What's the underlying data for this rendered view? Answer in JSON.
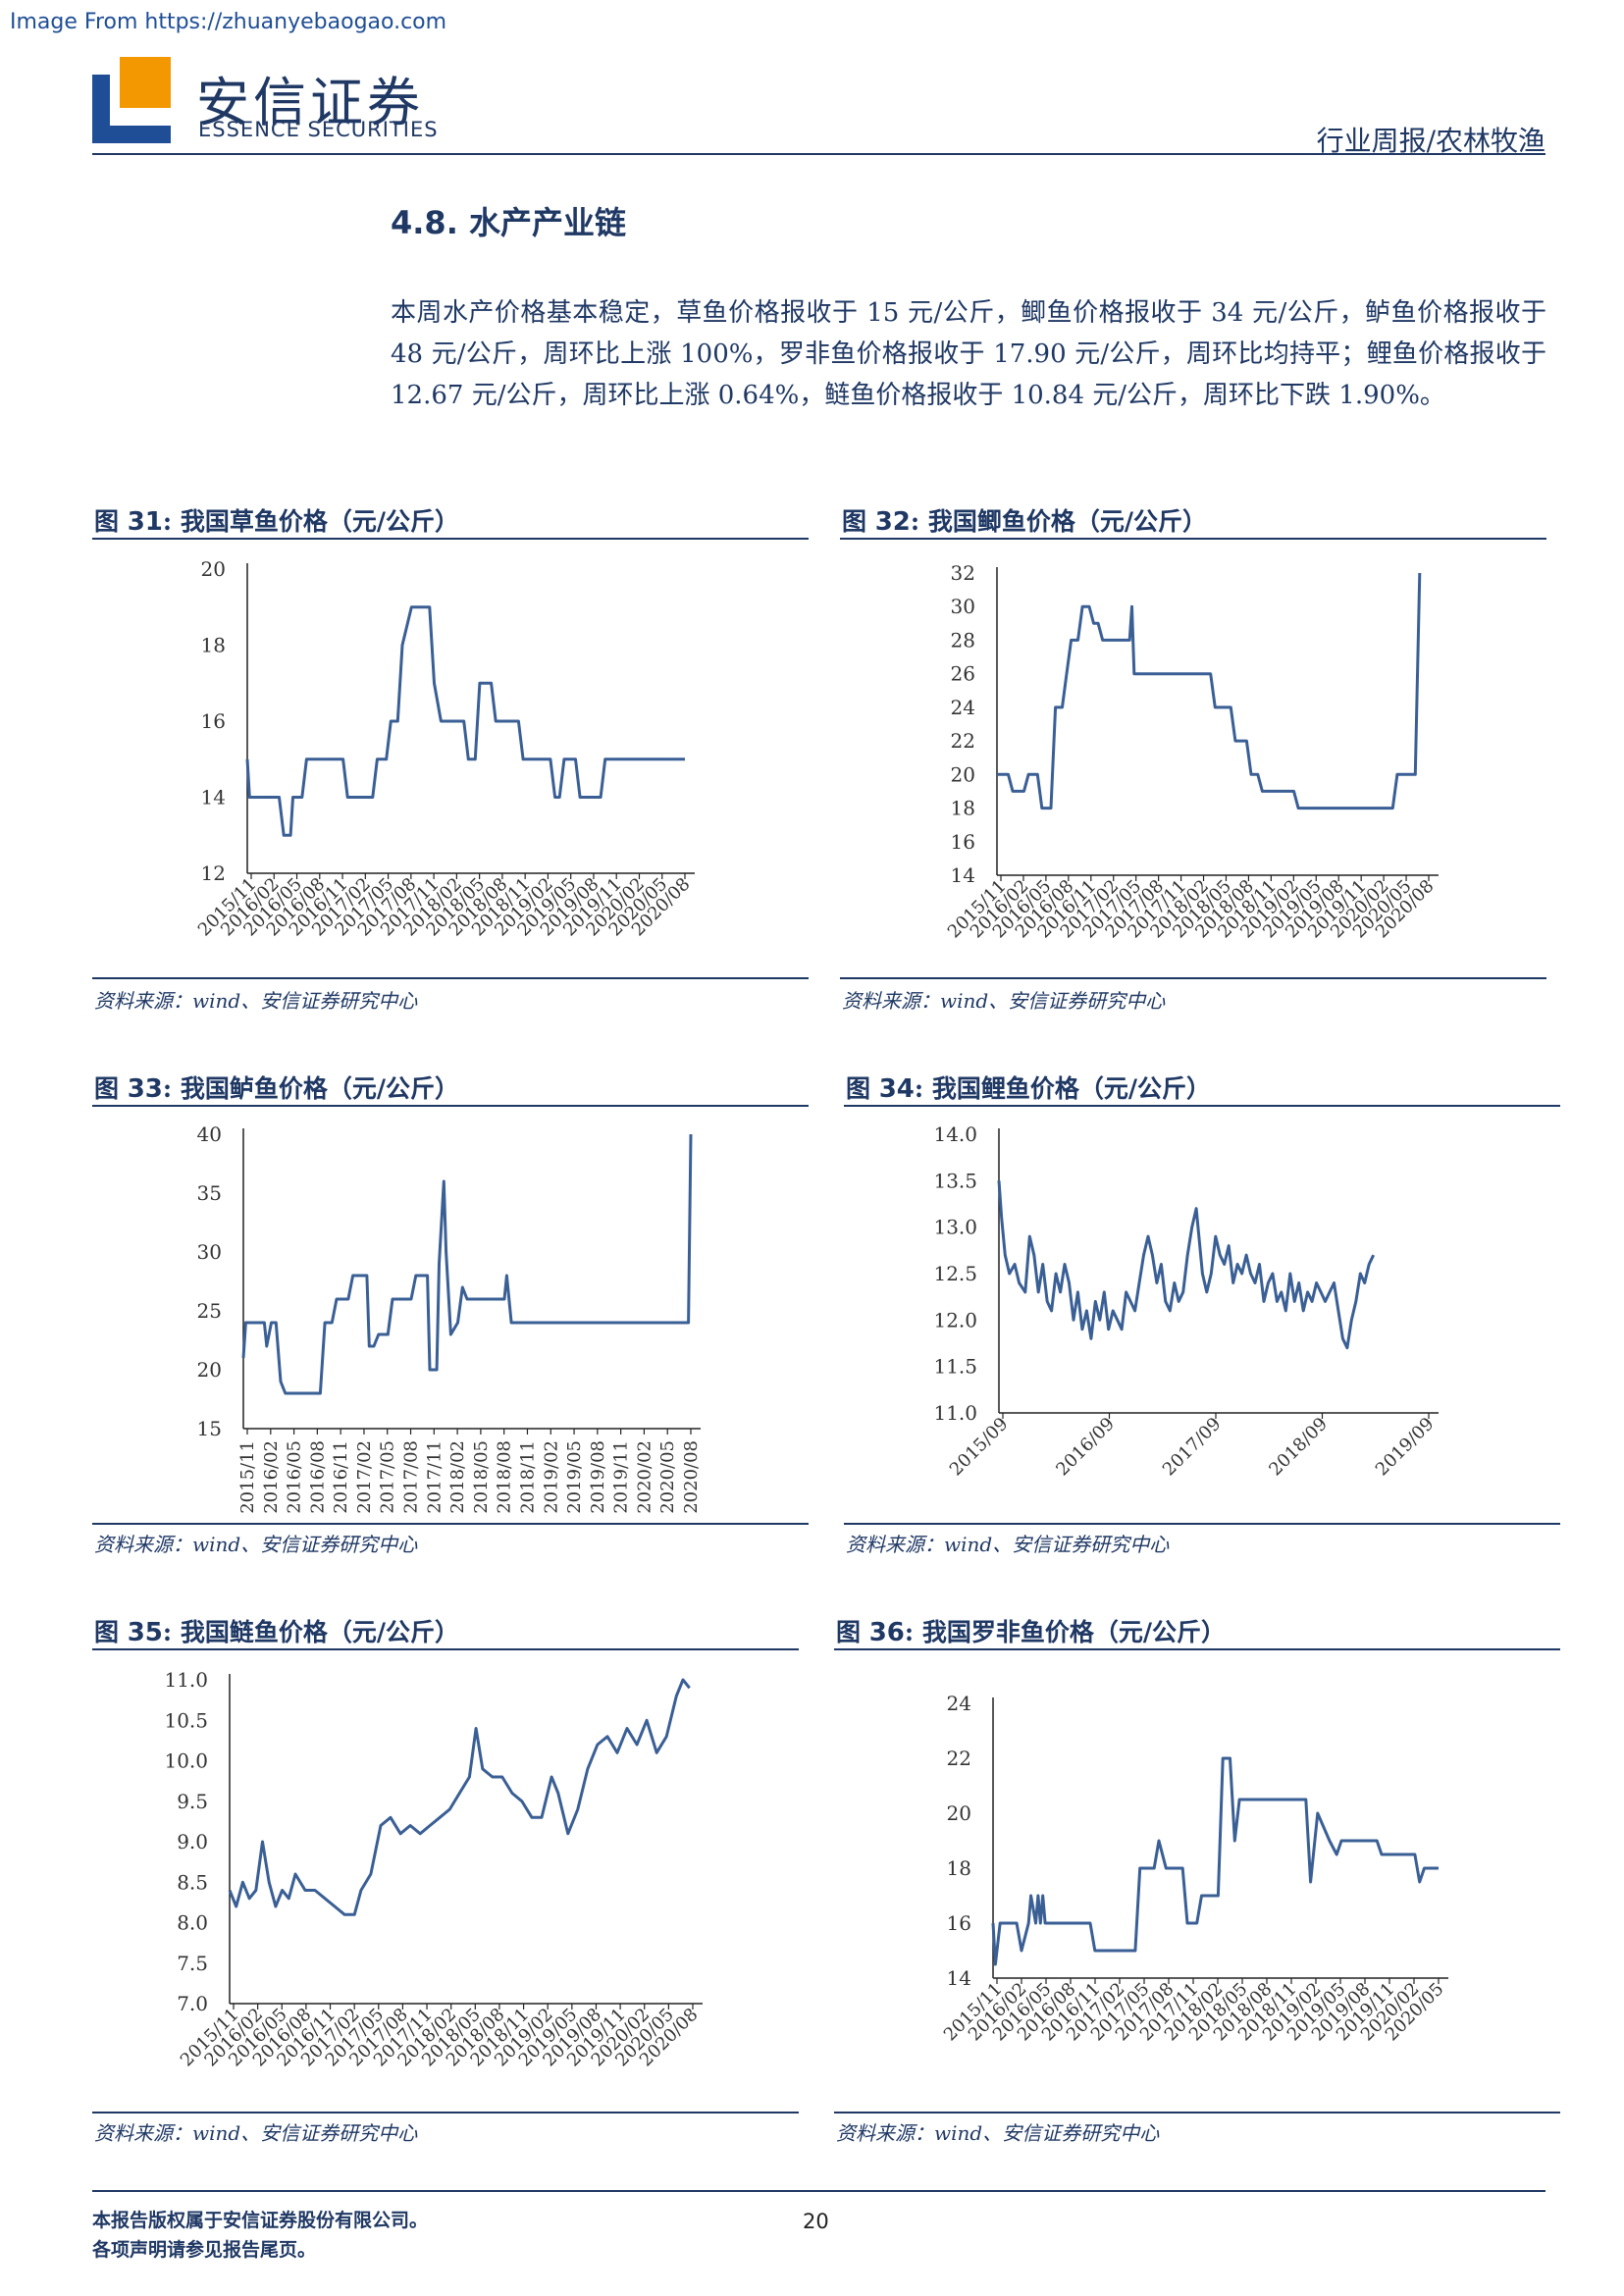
{
  "watermark": "Image From https://zhuanyebaogao.com",
  "header": {
    "brand_cn": "安信证券",
    "brand_en": "ESSENCE SECURITIES",
    "category": "行业周报/农林牧渔",
    "logo_colors": {
      "blue": "#1f4e96",
      "orange": "#f39800"
    }
  },
  "section": {
    "number": "4.8.",
    "title": "水产产业链"
  },
  "body_text": "本周水产价格基本稳定，草鱼价格报收于 15 元/公斤，鲫鱼价格报收于 34 元/公斤，鲈鱼价格报收于 48 元/公斤，周环比上涨 100%，罗非鱼价格报收于 17.90 元/公斤，周环比均持平；鲤鱼价格报收于 12.67 元/公斤，周环比上涨 0.64%，鲢鱼价格报收于 10.84 元/公斤，周环比下跌 1.90%。",
  "figures": [
    {
      "label": "图",
      "num": "31",
      "title": ": 我国草鱼价格（元/公斤）",
      "source": "资料来源：wind、安信证券研究中心"
    },
    {
      "label": "图",
      "num": "32",
      "title": ": 我国鲫鱼价格（元/公斤）",
      "source": "资料来源：wind、安信证券研究中心"
    },
    {
      "label": "图",
      "num": "33",
      "title": ": 我国鲈鱼价格（元/公斤）",
      "source": "资料来源：wind、安信证券研究中心"
    },
    {
      "label": "图",
      "num": "34",
      "title": ": 我国鲤鱼价格（元/公斤）",
      "source": "资料来源：wind、安信证券研究中心"
    },
    {
      "label": "图",
      "num": "35",
      "title": ": 我国鲢鱼价格（元/公斤）",
      "source": "资料来源：wind、安信证券研究中心"
    },
    {
      "label": "图",
      "num": "36",
      "title": ": 我国罗非鱼价格（元/公斤）",
      "source": "资料来源：wind、安信证券研究中心"
    }
  ],
  "chart_data": [
    {
      "type": "line",
      "ylim": [
        12,
        20
      ],
      "yticks": [
        "12",
        "14",
        "16",
        "18",
        "20"
      ],
      "xticks": [
        "2015/11",
        "2016/02",
        "2016/05",
        "2016/08",
        "2016/11",
        "2017/02",
        "2017/05",
        "2017/08",
        "2017/11",
        "2018/02",
        "2018/05",
        "2018/08",
        "2018/11",
        "2019/02",
        "2019/05",
        "2019/08",
        "2019/11",
        "2020/02",
        "2020/05",
        "2020/08"
      ],
      "line_color": "#3a5f95",
      "points": [
        [
          0,
          15
        ],
        [
          0.1,
          14
        ],
        [
          1.4,
          14
        ],
        [
          1.6,
          13
        ],
        [
          1.9,
          13
        ],
        [
          2.0,
          14
        ],
        [
          2.4,
          14
        ],
        [
          2.6,
          15
        ],
        [
          4.2,
          15
        ],
        [
          4.4,
          14
        ],
        [
          5.5,
          14
        ],
        [
          5.7,
          15
        ],
        [
          6.1,
          15
        ],
        [
          6.3,
          16
        ],
        [
          6.6,
          16
        ],
        [
          6.8,
          18
        ],
        [
          7.2,
          19
        ],
        [
          8.0,
          19
        ],
        [
          8.2,
          17
        ],
        [
          8.5,
          16
        ],
        [
          9.5,
          16
        ],
        [
          9.7,
          15
        ],
        [
          10.0,
          15
        ],
        [
          10.2,
          17
        ],
        [
          10.7,
          17
        ],
        [
          10.9,
          16
        ],
        [
          11.9,
          16
        ],
        [
          12.1,
          15
        ],
        [
          13.3,
          15
        ],
        [
          13.5,
          14
        ],
        [
          13.7,
          14
        ],
        [
          13.9,
          15
        ],
        [
          14.4,
          15
        ],
        [
          14.6,
          14
        ],
        [
          15.5,
          14
        ],
        [
          15.7,
          15
        ],
        [
          19.2,
          15
        ]
      ]
    },
    {
      "type": "line",
      "ylim": [
        14,
        32
      ],
      "yticks": [
        "14",
        "16",
        "18",
        "20",
        "22",
        "24",
        "26",
        "28",
        "30",
        "32"
      ],
      "xticks": [
        "2015/11",
        "2016/02",
        "2016/05",
        "2016/08",
        "2016/11",
        "2017/02",
        "2017/05",
        "2017/08",
        "2017/11",
        "2018/02",
        "2018/05",
        "2018/08",
        "2018/11",
        "2019/02",
        "2019/05",
        "2019/08",
        "2019/11",
        "2020/02",
        "2020/05",
        "2020/08"
      ],
      "line_color": "#3a5f95",
      "points": [
        [
          0,
          20
        ],
        [
          0.5,
          20
        ],
        [
          0.7,
          19
        ],
        [
          1.2,
          19
        ],
        [
          1.4,
          20
        ],
        [
          1.8,
          20
        ],
        [
          2.0,
          18
        ],
        [
          2.4,
          18
        ],
        [
          2.6,
          24
        ],
        [
          2.9,
          24
        ],
        [
          3.1,
          26
        ],
        [
          3.3,
          28
        ],
        [
          3.6,
          28
        ],
        [
          3.8,
          30
        ],
        [
          4.1,
          30
        ],
        [
          4.3,
          29
        ],
        [
          4.5,
          29
        ],
        [
          4.7,
          28
        ],
        [
          5.0,
          28
        ],
        [
          5.3,
          28
        ],
        [
          5.6,
          28
        ],
        [
          5.8,
          28
        ],
        [
          5.9,
          28
        ],
        [
          6.0,
          30
        ],
        [
          6.1,
          26
        ],
        [
          8.5,
          26
        ],
        [
          9.5,
          26
        ],
        [
          9.7,
          24
        ],
        [
          10.4,
          24
        ],
        [
          10.6,
          22
        ],
        [
          11.1,
          22
        ],
        [
          11.3,
          20
        ],
        [
          11.6,
          20
        ],
        [
          11.8,
          19
        ],
        [
          13.2,
          19
        ],
        [
          13.4,
          18
        ],
        [
          17.6,
          18
        ],
        [
          17.8,
          20
        ],
        [
          18.6,
          20
        ],
        [
          18.8,
          32
        ]
      ]
    },
    {
      "type": "line",
      "ylim": [
        15,
        40
      ],
      "yticks": [
        "15",
        "20",
        "25",
        "30",
        "35",
        "40"
      ],
      "xticks": [
        "2015/11",
        "2016/02",
        "2016/05",
        "2016/08",
        "2016/11",
        "2017/02",
        "2017/05",
        "2017/08",
        "2017/11",
        "2018/02",
        "2018/05",
        "2018/08",
        "2018/11",
        "2019/02",
        "2019/05",
        "2019/08",
        "2019/11",
        "2020/02",
        "2020/05",
        "2020/08"
      ],
      "line_color": "#3a5f95",
      "points": [
        [
          0,
          21
        ],
        [
          0.1,
          24
        ],
        [
          0.9,
          24
        ],
        [
          1.0,
          22
        ],
        [
          1.2,
          24
        ],
        [
          1.4,
          24
        ],
        [
          1.6,
          19
        ],
        [
          1.8,
          18
        ],
        [
          3.3,
          18
        ],
        [
          3.5,
          24
        ],
        [
          3.8,
          24
        ],
        [
          4.0,
          26
        ],
        [
          4.5,
          26
        ],
        [
          4.7,
          28
        ],
        [
          5.3,
          28
        ],
        [
          5.4,
          22
        ],
        [
          5.6,
          22
        ],
        [
          5.8,
          23
        ],
        [
          6.2,
          23
        ],
        [
          6.4,
          26
        ],
        [
          7.2,
          26
        ],
        [
          7.4,
          28
        ],
        [
          7.9,
          28
        ],
        [
          8.0,
          20
        ],
        [
          8.3,
          20
        ],
        [
          8.4,
          29
        ],
        [
          8.6,
          36
        ],
        [
          8.7,
          30
        ],
        [
          8.9,
          23
        ],
        [
          9.2,
          24
        ],
        [
          9.4,
          27
        ],
        [
          9.6,
          26
        ],
        [
          11.2,
          26
        ],
        [
          11.3,
          28
        ],
        [
          11.5,
          24
        ],
        [
          19.1,
          24
        ],
        [
          19.2,
          40
        ]
      ]
    },
    {
      "type": "line",
      "ylim": [
        11.0,
        14.0
      ],
      "yticks": [
        "11.0",
        "11.5",
        "12.0",
        "12.5",
        "13.0",
        "13.5",
        "14.0"
      ],
      "xticks": [
        "2015/09",
        "2016/09",
        "2017/09",
        "2018/09",
        "2019/09"
      ],
      "line_color": "#3a5f95",
      "points": [
        [
          0,
          13.5
        ],
        [
          0.03,
          13.1
        ],
        [
          0.07,
          12.7
        ],
        [
          0.12,
          12.5
        ],
        [
          0.18,
          12.6
        ],
        [
          0.23,
          12.4
        ],
        [
          0.3,
          12.3
        ],
        [
          0.35,
          12.9
        ],
        [
          0.4,
          12.7
        ],
        [
          0.45,
          12.3
        ],
        [
          0.5,
          12.6
        ],
        [
          0.55,
          12.2
        ],
        [
          0.6,
          12.1
        ],
        [
          0.65,
          12.5
        ],
        [
          0.7,
          12.3
        ],
        [
          0.75,
          12.6
        ],
        [
          0.8,
          12.4
        ],
        [
          0.85,
          12.0
        ],
        [
          0.9,
          12.3
        ],
        [
          0.95,
          11.9
        ],
        [
          1.0,
          12.1
        ],
        [
          1.05,
          11.8
        ],
        [
          1.1,
          12.2
        ],
        [
          1.15,
          12.0
        ],
        [
          1.2,
          12.3
        ],
        [
          1.25,
          11.9
        ],
        [
          1.3,
          12.1
        ],
        [
          1.35,
          12.0
        ],
        [
          1.4,
          11.9
        ],
        [
          1.45,
          12.3
        ],
        [
          1.5,
          12.2
        ],
        [
          1.55,
          12.1
        ],
        [
          1.6,
          12.4
        ],
        [
          1.65,
          12.7
        ],
        [
          1.7,
          12.9
        ],
        [
          1.75,
          12.7
        ],
        [
          1.8,
          12.4
        ],
        [
          1.85,
          12.6
        ],
        [
          1.9,
          12.2
        ],
        [
          1.95,
          12.1
        ],
        [
          2.0,
          12.4
        ],
        [
          2.05,
          12.2
        ],
        [
          2.1,
          12.3
        ],
        [
          2.15,
          12.7
        ],
        [
          2.2,
          13.0
        ],
        [
          2.25,
          13.2
        ],
        [
          2.28,
          12.9
        ],
        [
          2.32,
          12.5
        ],
        [
          2.37,
          12.3
        ],
        [
          2.42,
          12.5
        ],
        [
          2.47,
          12.9
        ],
        [
          2.52,
          12.7
        ],
        [
          2.57,
          12.6
        ],
        [
          2.62,
          12.8
        ],
        [
          2.67,
          12.4
        ],
        [
          2.72,
          12.6
        ],
        [
          2.77,
          12.5
        ],
        [
          2.82,
          12.7
        ],
        [
          2.87,
          12.5
        ],
        [
          2.92,
          12.4
        ],
        [
          2.97,
          12.6
        ],
        [
          3.02,
          12.2
        ],
        [
          3.07,
          12.4
        ],
        [
          3.12,
          12.5
        ],
        [
          3.17,
          12.2
        ],
        [
          3.22,
          12.3
        ],
        [
          3.27,
          12.1
        ],
        [
          3.32,
          12.5
        ],
        [
          3.37,
          12.2
        ],
        [
          3.42,
          12.4
        ],
        [
          3.47,
          12.1
        ],
        [
          3.52,
          12.3
        ],
        [
          3.57,
          12.2
        ],
        [
          3.62,
          12.4
        ],
        [
          3.67,
          12.3
        ],
        [
          3.72,
          12.2
        ],
        [
          3.77,
          12.3
        ],
        [
          3.82,
          12.4
        ],
        [
          3.87,
          12.1
        ],
        [
          3.92,
          11.8
        ],
        [
          3.97,
          11.7
        ],
        [
          4.02,
          12.0
        ],
        [
          4.07,
          12.2
        ],
        [
          4.12,
          12.5
        ],
        [
          4.17,
          12.4
        ],
        [
          4.22,
          12.6
        ],
        [
          4.27,
          12.7
        ]
      ]
    },
    {
      "type": "line",
      "ylim": [
        7.0,
        11.0
      ],
      "yticks": [
        "7.0",
        "7.5",
        "8.0",
        "8.5",
        "9.0",
        "9.5",
        "10.0",
        "10.5",
        "11.0"
      ],
      "xticks": [
        "2015/11",
        "2016/02",
        "2016/05",
        "2016/08",
        "2016/11",
        "2017/02",
        "2017/05",
        "2017/08",
        "2017/11",
        "2018/02",
        "2018/05",
        "2018/08",
        "2018/11",
        "2019/02",
        "2019/05",
        "2019/08",
        "2019/11",
        "2020/02",
        "2020/05",
        "2020/08"
      ],
      "line_color": "#3a5f95",
      "points": [
        [
          0,
          8.4
        ],
        [
          0.2,
          8.2
        ],
        [
          0.4,
          8.5
        ],
        [
          0.6,
          8.3
        ],
        [
          0.8,
          8.4
        ],
        [
          1.0,
          9.0
        ],
        [
          1.2,
          8.5
        ],
        [
          1.4,
          8.2
        ],
        [
          1.6,
          8.4
        ],
        [
          1.8,
          8.3
        ],
        [
          2.0,
          8.6
        ],
        [
          2.3,
          8.4
        ],
        [
          2.6,
          8.4
        ],
        [
          2.9,
          8.3
        ],
        [
          3.2,
          8.2
        ],
        [
          3.5,
          8.1
        ],
        [
          3.8,
          8.1
        ],
        [
          4.0,
          8.4
        ],
        [
          4.3,
          8.6
        ],
        [
          4.6,
          9.2
        ],
        [
          4.9,
          9.3
        ],
        [
          5.2,
          9.1
        ],
        [
          5.5,
          9.2
        ],
        [
          5.8,
          9.1
        ],
        [
          6.1,
          9.2
        ],
        [
          6.4,
          9.3
        ],
        [
          6.7,
          9.4
        ],
        [
          7.0,
          9.6
        ],
        [
          7.3,
          9.8
        ],
        [
          7.5,
          10.4
        ],
        [
          7.7,
          9.9
        ],
        [
          8.0,
          9.8
        ],
        [
          8.3,
          9.8
        ],
        [
          8.6,
          9.6
        ],
        [
          8.9,
          9.5
        ],
        [
          9.2,
          9.3
        ],
        [
          9.5,
          9.3
        ],
        [
          9.8,
          9.8
        ],
        [
          10.0,
          9.6
        ],
        [
          10.3,
          9.1
        ],
        [
          10.6,
          9.4
        ],
        [
          10.9,
          9.9
        ],
        [
          11.2,
          10.2
        ],
        [
          11.5,
          10.3
        ],
        [
          11.8,
          10.1
        ],
        [
          12.1,
          10.4
        ],
        [
          12.4,
          10.2
        ],
        [
          12.7,
          10.5
        ],
        [
          13.0,
          10.1
        ],
        [
          13.3,
          10.3
        ],
        [
          13.6,
          10.8
        ],
        [
          13.8,
          11.0
        ],
        [
          14.0,
          10.9
        ]
      ]
    },
    {
      "type": "line",
      "ylim": [
        14,
        24
      ],
      "yticks": [
        "14",
        "16",
        "18",
        "20",
        "22",
        "24"
      ],
      "xticks": [
        "2015/11",
        "2016/02",
        "2016/05",
        "2016/08",
        "2016/11",
        "2017/02",
        "2017/05",
        "2017/08",
        "2017/11",
        "2018/02",
        "2018/05",
        "2018/08",
        "2018/11",
        "2019/02",
        "2019/05",
        "2019/08",
        "2019/11",
        "2020/02",
        "2020/05"
      ],
      "line_color": "#3a5f95",
      "points": [
        [
          0,
          16
        ],
        [
          0.1,
          14.5
        ],
        [
          0.3,
          16
        ],
        [
          1.0,
          16
        ],
        [
          1.2,
          15
        ],
        [
          1.5,
          16
        ],
        [
          1.6,
          17
        ],
        [
          1.8,
          16
        ],
        [
          1.9,
          17
        ],
        [
          2.0,
          16
        ],
        [
          2.1,
          17
        ],
        [
          2.2,
          16
        ],
        [
          4.1,
          16
        ],
        [
          4.3,
          15
        ],
        [
          6.0,
          15
        ],
        [
          6.2,
          18
        ],
        [
          6.8,
          18
        ],
        [
          7.0,
          19
        ],
        [
          7.3,
          18
        ],
        [
          8.0,
          18
        ],
        [
          8.2,
          16
        ],
        [
          8.6,
          16
        ],
        [
          8.8,
          17
        ],
        [
          9.5,
          17
        ],
        [
          9.7,
          22
        ],
        [
          10.0,
          22
        ],
        [
          10.2,
          19
        ],
        [
          10.4,
          20.5
        ],
        [
          13.2,
          20.5
        ],
        [
          13.4,
          17.5
        ],
        [
          13.7,
          20
        ],
        [
          14.2,
          19
        ],
        [
          14.5,
          18.5
        ],
        [
          14.7,
          19
        ],
        [
          16.2,
          19
        ],
        [
          16.4,
          18.5
        ],
        [
          17.8,
          18.5
        ],
        [
          18.0,
          17.5
        ],
        [
          18.2,
          18
        ],
        [
          18.8,
          18
        ]
      ]
    }
  ],
  "footer": {
    "line1": "本报告版权属于安信证券股份有限公司。",
    "line2": "各项声明请参见报告尾页。",
    "page": "20"
  }
}
